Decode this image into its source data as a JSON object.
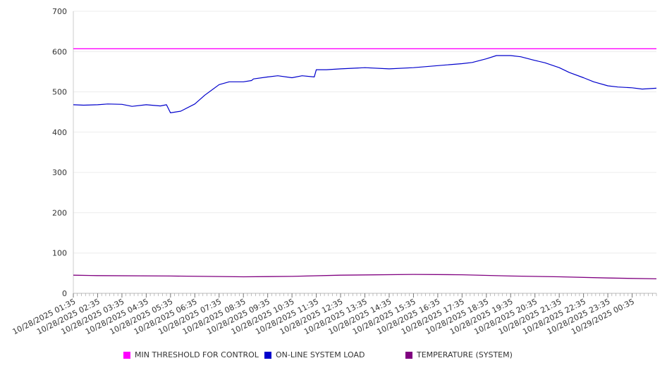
{
  "chart_data": {
    "type": "line",
    "ylim": [
      0,
      700
    ],
    "yticks": [
      0,
      100,
      200,
      300,
      400,
      500,
      600,
      700
    ],
    "grid": true,
    "legend_position": "bottom",
    "xlim": [
      "10/28/2025 01:35",
      "10/29/2025 01:35"
    ],
    "x_tick_labels": [
      "10/28/2025 01:35",
      "10/28/2025 02:35",
      "10/28/2025 03:35",
      "10/28/2025 04:35",
      "10/28/2025 05:35",
      "10/28/2025 06:35",
      "10/28/2025 07:35",
      "10/28/2025 08:35",
      "10/28/2025 09:35",
      "10/28/2025 10:35",
      "10/28/2025 11:35",
      "10/28/2025 12:35",
      "10/28/2025 13:35",
      "10/28/2025 14:35",
      "10/28/2025 15:35",
      "10/28/2025 16:35",
      "10/28/2025 17:35",
      "10/28/2025 18:35",
      "10/28/2025 19:35",
      "10/28/2025 20:35",
      "10/28/2025 21:35",
      "10/28/2025 22:35",
      "10/28/2025 23:35",
      "10/29/2025 00:35"
    ],
    "series": [
      {
        "name": "MIN THRESHOLD FOR CONTROL",
        "color": "#ff00ff",
        "points": [
          [
            "10/28/2025 01:35",
            607
          ],
          [
            "10/29/2025 01:35",
            607
          ]
        ]
      },
      {
        "name": "ON-LINE SYSTEM LOAD",
        "color": "#0000cc",
        "points": [
          [
            "10/28/2025 01:35",
            468
          ],
          [
            "10/28/2025 02:00",
            467
          ],
          [
            "10/28/2025 02:35",
            468
          ],
          [
            "10/28/2025 03:00",
            470
          ],
          [
            "10/28/2025 03:35",
            469
          ],
          [
            "10/28/2025 04:00",
            464
          ],
          [
            "10/28/2025 04:35",
            468
          ],
          [
            "10/28/2025 05:10",
            465
          ],
          [
            "10/28/2025 05:25",
            468
          ],
          [
            "10/28/2025 05:35",
            448
          ],
          [
            "10/28/2025 06:00",
            452
          ],
          [
            "10/28/2025 06:35",
            470
          ],
          [
            "10/28/2025 07:00",
            492
          ],
          [
            "10/28/2025 07:35",
            518
          ],
          [
            "10/28/2025 08:00",
            525
          ],
          [
            "10/28/2025 08:35",
            525
          ],
          [
            "10/28/2025 08:55",
            528
          ],
          [
            "10/28/2025 09:00",
            532
          ],
          [
            "10/28/2025 09:35",
            537
          ],
          [
            "10/28/2025 10:00",
            540
          ],
          [
            "10/28/2025 10:35",
            535
          ],
          [
            "10/28/2025 11:00",
            540
          ],
          [
            "10/28/2025 11:30",
            537
          ],
          [
            "10/28/2025 11:35",
            555
          ],
          [
            "10/28/2025 12:00",
            555
          ],
          [
            "10/28/2025 12:35",
            557
          ],
          [
            "10/28/2025 13:35",
            560
          ],
          [
            "10/28/2025 14:35",
            557
          ],
          [
            "10/28/2025 15:35",
            560
          ],
          [
            "10/28/2025 16:35",
            565
          ],
          [
            "10/28/2025 17:35",
            570
          ],
          [
            "10/28/2025 18:00",
            573
          ],
          [
            "10/28/2025 18:35",
            582
          ],
          [
            "10/28/2025 19:00",
            590
          ],
          [
            "10/28/2025 19:35",
            590
          ],
          [
            "10/28/2025 20:00",
            587
          ],
          [
            "10/28/2025 20:35",
            578
          ],
          [
            "10/28/2025 21:00",
            572
          ],
          [
            "10/28/2025 21:35",
            560
          ],
          [
            "10/28/2025 22:00",
            548
          ],
          [
            "10/28/2025 22:35",
            535
          ],
          [
            "10/28/2025 23:00",
            525
          ],
          [
            "10/28/2025 23:35",
            515
          ],
          [
            "10/29/2025 00:00",
            512
          ],
          [
            "10/29/2025 00:35",
            510
          ],
          [
            "10/29/2025 01:00",
            507
          ],
          [
            "10/29/2025 01:35",
            509
          ]
        ]
      },
      {
        "name": "TEMPERATURE (SYSTEM)",
        "color": "#800080",
        "points": [
          [
            "10/28/2025 01:35",
            45
          ],
          [
            "10/28/2025 02:35",
            44
          ],
          [
            "10/28/2025 05:35",
            43
          ],
          [
            "10/28/2025 08:35",
            41
          ],
          [
            "10/28/2025 10:35",
            42
          ],
          [
            "10/28/2025 12:35",
            45
          ],
          [
            "10/28/2025 15:35",
            47
          ],
          [
            "10/28/2025 17:35",
            46
          ],
          [
            "10/28/2025 19:35",
            43
          ],
          [
            "10/28/2025 21:35",
            41
          ],
          [
            "10/28/2025 23:35",
            38
          ],
          [
            "10/29/2025 01:35",
            36
          ]
        ]
      }
    ]
  }
}
